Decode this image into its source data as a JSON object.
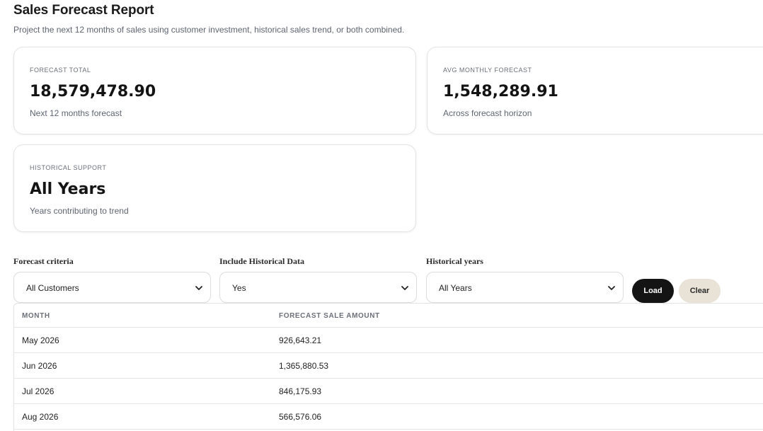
{
  "header": {
    "title": "Sales Forecast Report",
    "subtitle": "Project the next 12 months of sales using customer investment, historical sales trend, or both combined."
  },
  "cards": {
    "total": {
      "label": "FORECAST TOTAL",
      "value": "18,579,478.90",
      "caption": "Next 12 months forecast"
    },
    "avg": {
      "label": "AVG MONTHLY FORECAST",
      "value": "1,548,289.91",
      "caption": "Across forecast horizon"
    },
    "hist": {
      "label": "HISTORICAL SUPPORT",
      "value": "All Years",
      "caption": "Years contributing to trend"
    }
  },
  "filters": {
    "criteria": {
      "label": "Forecast criteria",
      "value": "All Customers"
    },
    "include_hist": {
      "label": "Include Historical Data",
      "value": "Yes"
    },
    "hist_years": {
      "label": "Historical years",
      "value": "All Years"
    }
  },
  "actions": {
    "load": "Load",
    "clear": "Clear"
  },
  "table": {
    "headers": [
      "MONTH",
      "FORECAST SALE AMOUNT"
    ],
    "rows": [
      {
        "month": "May 2026",
        "amount": "926,643.21"
      },
      {
        "month": "Jun 2026",
        "amount": "1,365,880.53"
      },
      {
        "month": "Jul 2026",
        "amount": "846,175.93"
      },
      {
        "month": "Aug 2026",
        "amount": "566,576.06"
      }
    ]
  },
  "icons": {
    "select_arrow": "chevron-down-icon"
  }
}
